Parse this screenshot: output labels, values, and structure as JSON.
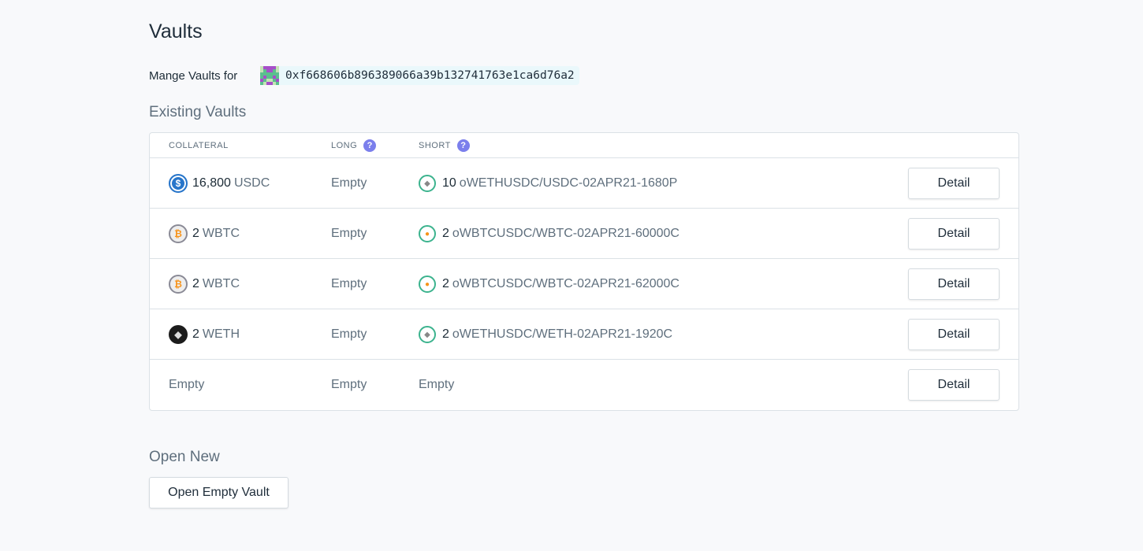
{
  "page_title": "Vaults",
  "owner": {
    "label": "Mange Vaults for",
    "address": "0xf668606b896389066a39b132741763e1ca6d76a2"
  },
  "existing": {
    "title": "Existing Vaults",
    "columns": {
      "collateral": "COLLATERAL",
      "long": "LONG",
      "short": "SHORT",
      "help": "?"
    },
    "rows": [
      {
        "collateral_amount": "16,800",
        "collateral_symbol": "USDC",
        "collateral_icon": "usdc-icon",
        "long": "Empty",
        "short_amount": "10",
        "short_name": "oWETHUSDC/USDC-02APR21-1680P",
        "short_icon": "eth",
        "detail": "Detail"
      },
      {
        "collateral_amount": "2",
        "collateral_symbol": "WBTC",
        "collateral_icon": "wbtc-icon",
        "long": "Empty",
        "short_amount": "2",
        "short_name": "oWBTCUSDC/WBTC-02APR21-60000C",
        "short_icon": "btc",
        "detail": "Detail"
      },
      {
        "collateral_amount": "2",
        "collateral_symbol": "WBTC",
        "collateral_icon": "wbtc-icon",
        "long": "Empty",
        "short_amount": "2",
        "short_name": "oWBTCUSDC/WBTC-02APR21-62000C",
        "short_icon": "btc",
        "detail": "Detail"
      },
      {
        "collateral_amount": "2",
        "collateral_symbol": "WETH",
        "collateral_icon": "weth-icon",
        "long": "Empty",
        "short_amount": "2",
        "short_name": "oWETHUSDC/WETH-02APR21-1920C",
        "short_icon": "eth",
        "detail": "Detail"
      },
      {
        "collateral_empty": "Empty",
        "long": "Empty",
        "short_empty": "Empty",
        "detail": "Detail"
      }
    ]
  },
  "open_new": {
    "title": "Open New",
    "button": "Open Empty Vault"
  },
  "colors": {
    "accent_help": "#7b7fec",
    "otoken_ring": "#3cb38e",
    "usdc": "#2775ca",
    "btc": "#f7931a"
  }
}
